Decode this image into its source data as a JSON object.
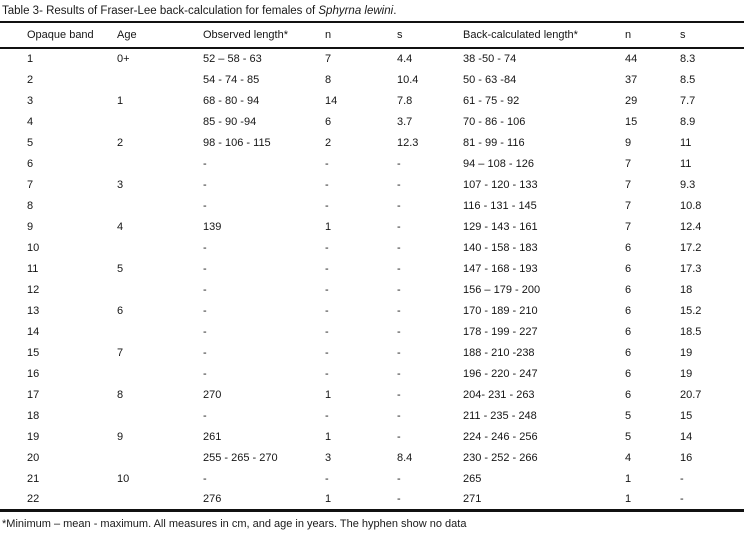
{
  "title": {
    "prefix": "Table 3- Results of Fraser-Lee back-calculation for females of ",
    "species": "Sphyrna lewini",
    "suffix": "."
  },
  "table": {
    "headers": [
      "Opaque band",
      "Age",
      "Observed length*",
      "n",
      "s",
      "Back-calculated length*",
      "n",
      "s"
    ],
    "rows": [
      [
        "1",
        "0+",
        "52 – 58 - 63",
        "7",
        "4.4",
        "38 -50 - 74",
        "44",
        "8.3"
      ],
      [
        "2",
        "",
        "54 - 74 - 85",
        "8",
        "10.4",
        "50 - 63 -84",
        "37",
        "8.5"
      ],
      [
        "3",
        "1",
        "68 - 80 - 94",
        "14",
        "7.8",
        "61 - 75 - 92",
        "29",
        "7.7"
      ],
      [
        "4",
        "",
        "85 - 90 -94",
        "6",
        "3.7",
        "70 - 86 - 106",
        "15",
        "8.9"
      ],
      [
        "5",
        "2",
        "98 - 106 - 115",
        "2",
        "12.3",
        "81 - 99 - 116",
        "9",
        "11"
      ],
      [
        "6",
        "",
        "-",
        "-",
        "-",
        "94 – 108 - 126",
        "7",
        "11"
      ],
      [
        "7",
        "3",
        "-",
        "-",
        "-",
        "107 - 120 - 133",
        "7",
        "9.3"
      ],
      [
        "8",
        "",
        "-",
        "-",
        "-",
        "116 - 131 - 145",
        "7",
        "10.8"
      ],
      [
        "9",
        "4",
        "139",
        "1",
        "-",
        "129 - 143 - 161",
        "7",
        "12.4"
      ],
      [
        "10",
        "",
        "-",
        "-",
        "-",
        "140 - 158 - 183",
        "6",
        "17.2"
      ],
      [
        "11",
        "5",
        "-",
        "-",
        "-",
        "147 - 168 - 193",
        "6",
        "17.3"
      ],
      [
        "12",
        "",
        "-",
        "-",
        "-",
        "156 – 179 - 200",
        "6",
        "18"
      ],
      [
        "13",
        "6",
        "-",
        "-",
        "-",
        "170 - 189 - 210",
        "6",
        "15.2"
      ],
      [
        "14",
        "",
        "-",
        "-",
        "-",
        "178 - 199 - 227",
        "6",
        "18.5"
      ],
      [
        "15",
        "7",
        "-",
        "-",
        "-",
        "188 - 210 -238",
        "6",
        "19"
      ],
      [
        "16",
        "",
        "-",
        "-",
        "-",
        "196 - 220 - 247",
        "6",
        "19"
      ],
      [
        "17",
        "8",
        "270",
        "1",
        "-",
        "204- 231 - 263",
        "6",
        "20.7"
      ],
      [
        "18",
        "",
        "-",
        "-",
        "-",
        "211 - 235 - 248",
        "5",
        "15"
      ],
      [
        "19",
        "9",
        "261",
        "1",
        "-",
        "224 - 246 - 256",
        "5",
        "14"
      ],
      [
        "20",
        "",
        "255 - 265 - 270",
        "3",
        "8.4",
        "230 - 252 - 266",
        "4",
        "16"
      ],
      [
        "21",
        "10",
        "-",
        "-",
        "-",
        "265",
        "1",
        "-"
      ],
      [
        "22",
        "",
        "276",
        "1",
        "-",
        "271",
        "1",
        "-"
      ]
    ]
  },
  "footnote": "*Minimum – mean - maximum. All measures in cm, and age in years. The hyphen show no data"
}
